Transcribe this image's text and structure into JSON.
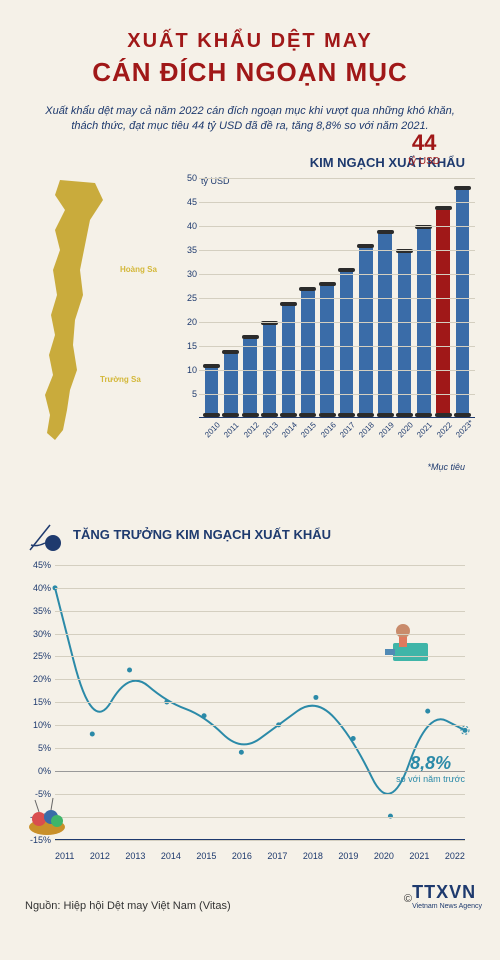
{
  "title_line1": "XUẤT KHẨU DỆT MAY",
  "title_line2": "CÁN ĐÍCH NGOẠN MỤC",
  "subtitle": "Xuất khẩu dệt may cả năm 2022 cán đích ngoạn mục khi vượt qua những khó khăn, thách thức, đạt mục tiêu 44 tỷ USD đã đề ra, tăng 8,8% so với năm 2021.",
  "bar_chart": {
    "title": "KIM NGẠCH XUẤT KHẨU",
    "y_unit": "tỷ USD",
    "y_max": 50,
    "y_step": 5,
    "y_ticks": [
      5,
      10,
      15,
      20,
      25,
      30,
      35,
      40,
      45,
      50
    ],
    "categories": [
      "2010",
      "2011",
      "2012",
      "2013",
      "2014",
      "2015",
      "2016",
      "2017",
      "2018",
      "2019",
      "2020",
      "2021",
      "2022",
      "2023*"
    ],
    "values": [
      11,
      14,
      17,
      20,
      24,
      27,
      28,
      31,
      36,
      39,
      35,
      40,
      44,
      48
    ],
    "highlight_index": 12,
    "highlight_value": "44",
    "highlight_unit": "tỷ USD",
    "bar_color_default": "#3a6ca8",
    "bar_color_highlight": "#a01818",
    "footnote": "*Mục tiêu"
  },
  "line_chart": {
    "title": "TĂNG TRƯỞNG KIM NGẠCH XUẤT KHẨU",
    "y_min": -15,
    "y_max": 45,
    "y_step": 5,
    "y_ticks": [
      -15,
      -10,
      -5,
      0,
      5,
      10,
      15,
      20,
      25,
      30,
      35,
      40,
      45
    ],
    "categories": [
      "2011",
      "2012",
      "2013",
      "2014",
      "2015",
      "2016",
      "2017",
      "2018",
      "2019",
      "2020",
      "2021",
      "2022"
    ],
    "values": [
      40,
      8,
      22,
      15,
      12,
      4,
      10,
      16,
      7,
      -10,
      13,
      8.8
    ],
    "line_color": "#2b8aa8",
    "callout_value": "8,8%",
    "callout_text": "so với năm trước"
  },
  "map_labels": {
    "hoang_sa": "Hoàng Sa",
    "truong_sa": "Trường Sa"
  },
  "source": "Nguồn: Hiệp hội Dệt may Việt Nam (Vitas)",
  "logo_main": "TTXVN",
  "logo_sub": "Vietnam News Agency",
  "colors": {
    "background": "#f5f1e8",
    "primary_text": "#1e3a6e",
    "accent_red": "#a01818",
    "map_fill": "#c9ab3c",
    "grid": "#d4cfc0"
  }
}
